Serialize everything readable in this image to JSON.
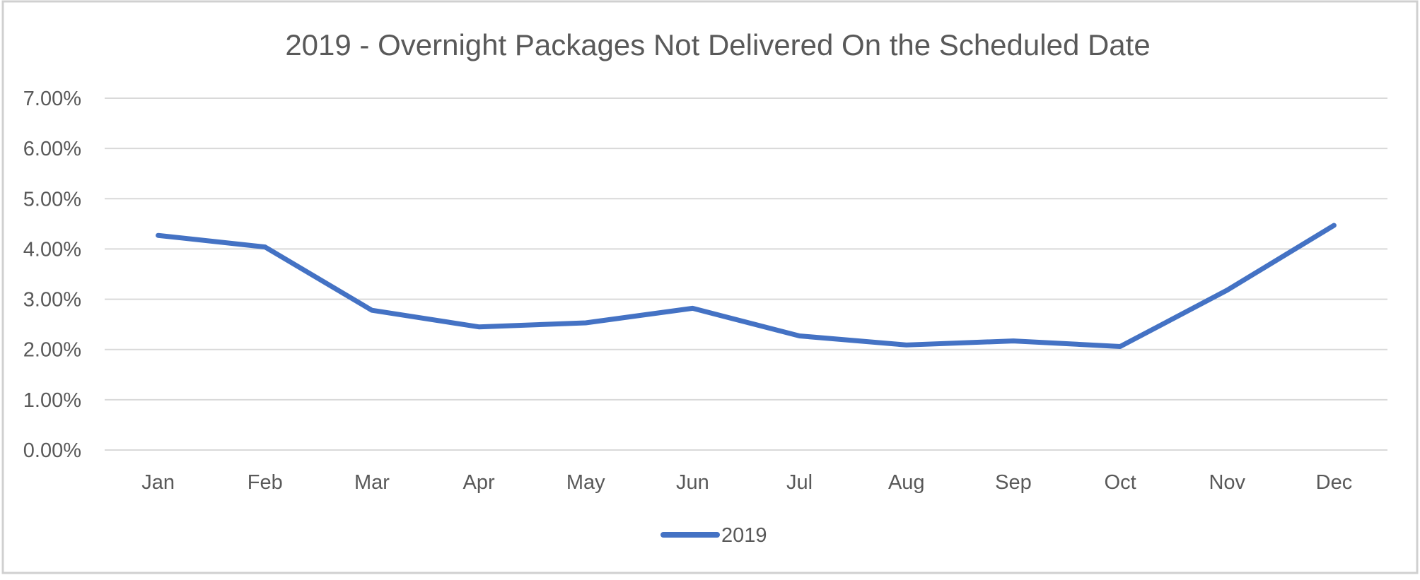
{
  "chart_data": {
    "type": "line",
    "title": "2019 - Overnight Packages Not Delivered On the Scheduled Date",
    "xlabel": "",
    "ylabel": "",
    "categories": [
      "Jan",
      "Feb",
      "Mar",
      "Apr",
      "May",
      "Jun",
      "Jul",
      "Aug",
      "Sep",
      "Oct",
      "Nov",
      "Dec"
    ],
    "series": [
      {
        "name": "2019",
        "color": "#4472c4",
        "values": [
          0.0427,
          0.0404,
          0.0278,
          0.0245,
          0.0253,
          0.0282,
          0.0227,
          0.0209,
          0.0217,
          0.0206,
          0.0318,
          0.0447
        ]
      }
    ],
    "ylim": [
      0,
      0.07
    ],
    "yticks": [
      0,
      0.01,
      0.02,
      0.03,
      0.04,
      0.05,
      0.06,
      0.07
    ],
    "ytick_labels": [
      "0.00%",
      "1.00%",
      "2.00%",
      "3.00%",
      "4.00%",
      "5.00%",
      "6.00%",
      "7.00%"
    ],
    "grid": true,
    "legend": {
      "position": "bottom",
      "entries": [
        "2019"
      ]
    }
  }
}
